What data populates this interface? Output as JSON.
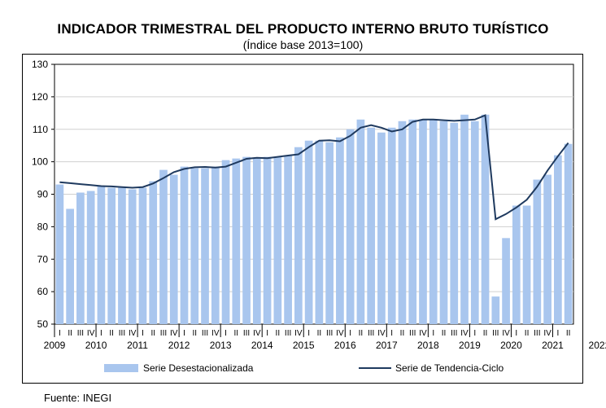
{
  "chart_data": {
    "type": "bar",
    "title": "Indicador Trimestral del Producto Interno Bruto Turístico",
    "subtitle": "(Índice base 2013=100)",
    "ylim": [
      50,
      130
    ],
    "yticks": [
      50,
      60,
      70,
      80,
      90,
      100,
      110,
      120,
      130
    ],
    "years": [
      "2009",
      "2010",
      "2011",
      "2012",
      "2013",
      "2014",
      "2015",
      "2016",
      "2017",
      "2018",
      "2019",
      "2020",
      "2021",
      "2022"
    ],
    "quarter_labels": [
      "I",
      "II",
      "III",
      "IV"
    ],
    "series": [
      {
        "name": "Serie Desestacionalizada",
        "kind": "bar",
        "color": "#a9c6ee",
        "values": [
          93.0,
          85.5,
          90.5,
          91.0,
          92.5,
          92.0,
          92.0,
          91.5,
          92.0,
          94.0,
          97.5,
          96.0,
          98.5,
          98.0,
          98.0,
          98.5,
          100.5,
          101.0,
          101.5,
          101.0,
          101.5,
          101.5,
          102.0,
          104.5,
          106.5,
          106.5,
          106.0,
          107.5,
          110.0,
          113.0,
          110.5,
          109.0,
          110.5,
          112.5,
          113.0,
          113.0,
          113.0,
          112.5,
          112.0,
          114.5,
          112.5,
          114.5,
          58.5,
          76.5,
          86.5,
          86.5,
          94.5,
          96.0,
          102.0,
          105.5
        ]
      },
      {
        "name": "Serie de Tendencia-Ciclo",
        "kind": "line",
        "color": "#1f3a5f",
        "values": [
          93.7,
          93.4,
          93.1,
          92.8,
          92.5,
          92.4,
          92.2,
          92.0,
          92.2,
          93.3,
          95.0,
          96.8,
          97.8,
          98.3,
          98.4,
          98.2,
          98.5,
          99.7,
          100.9,
          101.2,
          101.1,
          101.5,
          101.9,
          102.3,
          104.5,
          106.5,
          106.6,
          106.3,
          108.0,
          110.5,
          111.3,
          110.5,
          109.3,
          110.0,
          112.3,
          113.0,
          113.0,
          112.8,
          112.6,
          112.8,
          113.0,
          114.3,
          82.3,
          83.9,
          85.9,
          88.3,
          92.3,
          97.3,
          101.7,
          105.8
        ]
      }
    ],
    "legend_position": "bottom",
    "grid": true
  },
  "source": "Fuente: INEGI"
}
